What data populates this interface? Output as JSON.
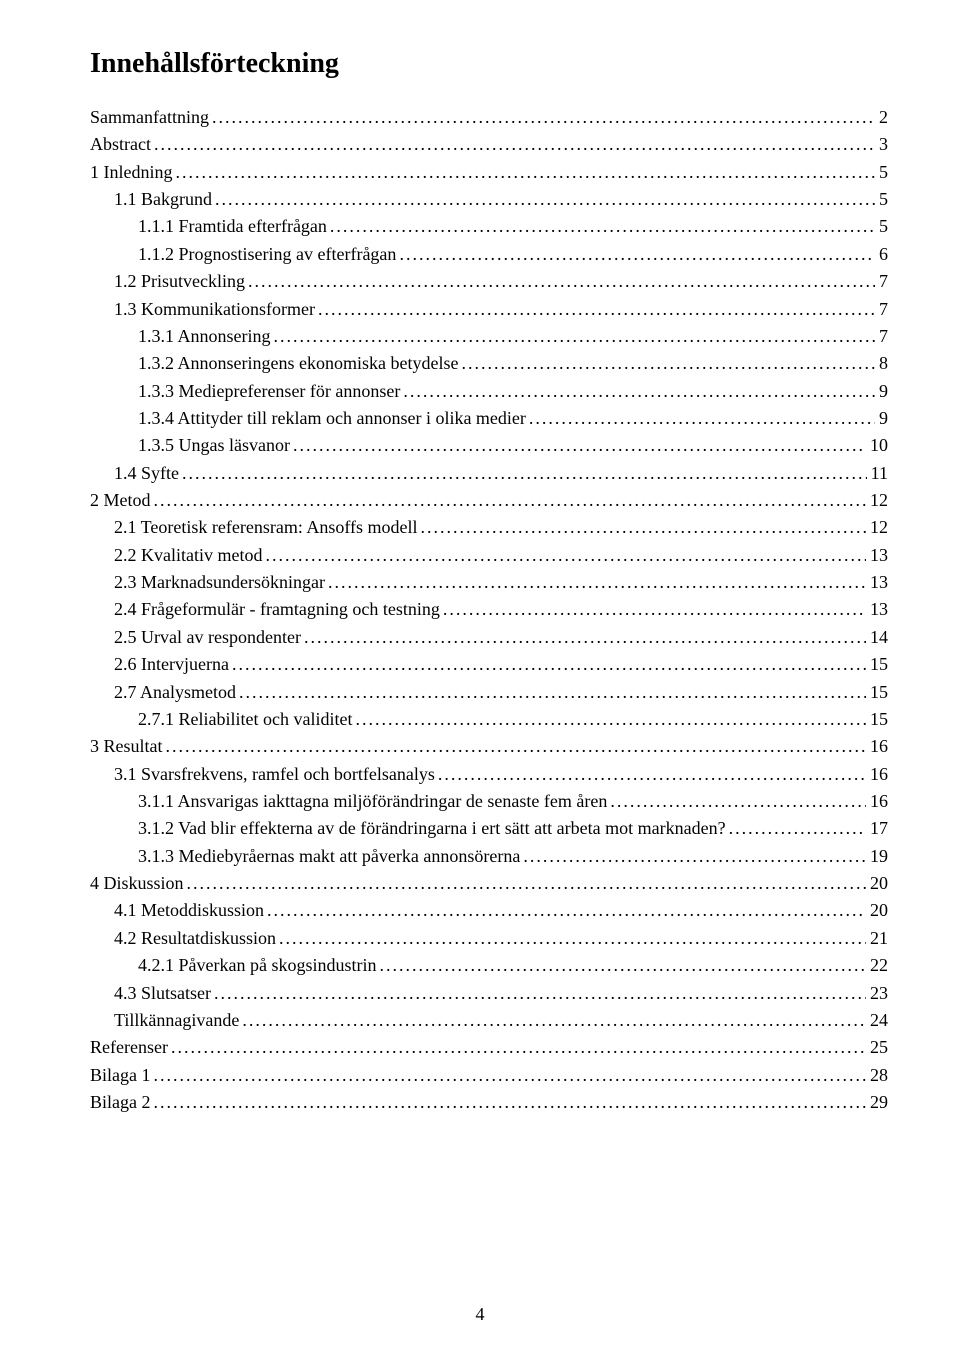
{
  "title": "Innehållsförteckning",
  "page_number": "4",
  "toc": [
    {
      "label": "Sammanfattning",
      "page": "2",
      "indent": 0
    },
    {
      "label": "Abstract",
      "page": "3",
      "indent": 0
    },
    {
      "label": "1 Inledning",
      "page": "5",
      "indent": 0
    },
    {
      "label": "1.1 Bakgrund",
      "page": "5",
      "indent": 1
    },
    {
      "label": "1.1.1 Framtida efterfrågan",
      "page": "5",
      "indent": 2
    },
    {
      "label": "1.1.2 Prognostisering av efterfrågan",
      "page": "6",
      "indent": 2
    },
    {
      "label": "1.2 Prisutveckling",
      "page": "7",
      "indent": 1
    },
    {
      "label": "1.3 Kommunikationsformer",
      "page": "7",
      "indent": 1
    },
    {
      "label": "1.3.1 Annonsering",
      "page": "7",
      "indent": 2
    },
    {
      "label": "1.3.2 Annonseringens ekonomiska betydelse",
      "page": "8",
      "indent": 2
    },
    {
      "label": "1.3.3 Mediepreferenser för annonser",
      "page": "9",
      "indent": 2
    },
    {
      "label": "1.3.4 Attityder till reklam och annonser i olika medier",
      "page": "9",
      "indent": 2
    },
    {
      "label": "1.3.5 Ungas läsvanor",
      "page": "10",
      "indent": 2
    },
    {
      "label": "1.4 Syfte",
      "page": "11",
      "indent": 1
    },
    {
      "label": "2 Metod",
      "page": "12",
      "indent": 0
    },
    {
      "label": "2.1 Teoretisk referensram: Ansoffs modell",
      "page": "12",
      "indent": 1
    },
    {
      "label": "2.2 Kvalitativ metod",
      "page": "13",
      "indent": 1
    },
    {
      "label": "2.3 Marknadsundersökningar",
      "page": "13",
      "indent": 1
    },
    {
      "label": "2.4 Frågeformulär - framtagning och testning",
      "page": "13",
      "indent": 1
    },
    {
      "label": "2.5 Urval av respondenter",
      "page": "14",
      "indent": 1
    },
    {
      "label": "2.6 Intervjuerna",
      "page": "15",
      "indent": 1
    },
    {
      "label": "2.7 Analysmetod",
      "page": "15",
      "indent": 1
    },
    {
      "label": "2.7.1 Reliabilitet och validitet",
      "page": "15",
      "indent": 2
    },
    {
      "label": "3 Resultat",
      "page": "16",
      "indent": 0
    },
    {
      "label": "3.1 Svarsfrekvens, ramfel och bortfelsanalys",
      "page": "16",
      "indent": 1
    },
    {
      "label": "3.1.1 Ansvarigas iakttagna miljöförändringar de senaste fem åren",
      "page": "16",
      "indent": 2
    },
    {
      "label": "3.1.2 Vad blir effekterna av de förändringarna i ert sätt att arbeta mot marknaden?",
      "page": "17",
      "indent": 2
    },
    {
      "label": "3.1.3 Mediebyråernas makt att påverka annonsörerna",
      "page": "19",
      "indent": 2
    },
    {
      "label": "4 Diskussion",
      "page": "20",
      "indent": 0
    },
    {
      "label": "4.1 Metoddiskussion",
      "page": "20",
      "indent": 1
    },
    {
      "label": "4.2 Resultatdiskussion",
      "page": "21",
      "indent": 1
    },
    {
      "label": "4.2.1 Påverkan på skogsindustrin",
      "page": "22",
      "indent": 2
    },
    {
      "label": "4.3 Slutsatser",
      "page": "23",
      "indent": 1
    },
    {
      "label": "Tillkännagivande",
      "page": "24",
      "indent": 1
    },
    {
      "label": "Referenser",
      "page": "25",
      "indent": 0
    },
    {
      "label": "Bilaga 1",
      "page": "28",
      "indent": 0
    },
    {
      "label": "Bilaga 2",
      "page": "29",
      "indent": 0
    }
  ]
}
